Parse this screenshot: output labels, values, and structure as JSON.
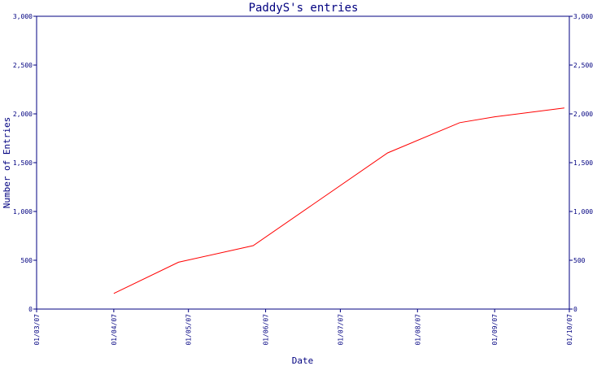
{
  "chart_data": {
    "type": "line",
    "title": "PaddyS's entries",
    "xlabel": "Date",
    "ylabel": "Number of Entries",
    "x_tick_labels": [
      "01/03/07",
      "01/04/07",
      "01/05/07",
      "01/06/07",
      "01/07/07",
      "01/08/07",
      "01/09/07",
      "01/10/07"
    ],
    "x_ticks": [
      "2007-03-01",
      "2007-04-01",
      "2007-05-01",
      "2007-06-01",
      "2007-07-01",
      "2007-08-01",
      "2007-09-01",
      "2007-10-01"
    ],
    "xlim": [
      "2007-03-01",
      "2007-10-01"
    ],
    "y_tick_labels": [
      "0",
      "500",
      "1,000",
      "1,500",
      "2,000",
      "2,500",
      "3,000"
    ],
    "y_ticks": [
      0,
      500,
      1000,
      1500,
      2000,
      2500,
      3000
    ],
    "ylim": [
      0,
      3000
    ],
    "grid": false,
    "colors": {
      "axis": "#000080",
      "line": "#ff0000"
    },
    "series": [
      {
        "x": [
          "2007-04-01",
          "2007-04-27",
          "2007-05-27",
          "2007-07-20",
          "2007-08-18",
          "2007-09-01",
          "2007-09-29"
        ],
        "y": [
          160,
          480,
          650,
          1600,
          1910,
          1970,
          2060
        ]
      }
    ]
  }
}
